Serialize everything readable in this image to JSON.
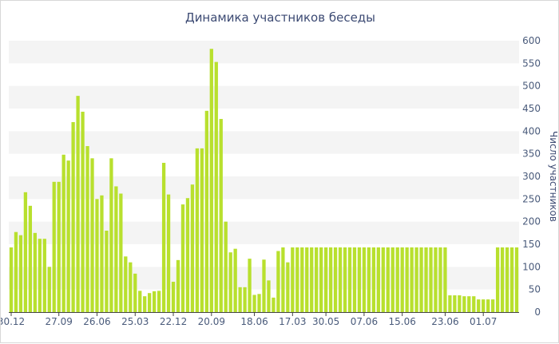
{
  "chart_data": {
    "type": "bar",
    "title": "Динамика участников беседы",
    "xlabel": "",
    "ylabel": "Число участников",
    "ylim": [
      0,
      600
    ],
    "yticks": [
      0,
      50,
      100,
      150,
      200,
      250,
      300,
      350,
      400,
      450,
      500,
      550,
      600
    ],
    "y_axis_position": "right",
    "grid": "alternating horizontal bands",
    "bar_color": "#b8e02e",
    "xtick_labels": [
      {
        "label": "30.12",
        "index": 0
      },
      {
        "label": "27.09",
        "index": 10
      },
      {
        "label": "26.06",
        "index": 18
      },
      {
        "label": "25.03",
        "index": 26
      },
      {
        "label": "22.12",
        "index": 34
      },
      {
        "label": "20.09",
        "index": 42
      },
      {
        "label": "18.06",
        "index": 51
      },
      {
        "label": "17.03",
        "index": 59
      },
      {
        "label": "30.05",
        "index": 66
      },
      {
        "label": "07.06",
        "index": 74
      },
      {
        "label": "15.06",
        "index": 82
      },
      {
        "label": "23.06",
        "index": 91
      },
      {
        "label": "01.07",
        "index": 99
      }
    ],
    "values": [
      143,
      177,
      170,
      265,
      235,
      175,
      162,
      162,
      100,
      288,
      288,
      348,
      335,
      420,
      478,
      443,
      367,
      340,
      250,
      258,
      180,
      340,
      278,
      262,
      123,
      110,
      85,
      47,
      35,
      42,
      46,
      47,
      330,
      260,
      67,
      115,
      238,
      252,
      282,
      362,
      362,
      445,
      582,
      553,
      427,
      200,
      132,
      140,
      55,
      55,
      118,
      38,
      40,
      116,
      70,
      32,
      135,
      143,
      110,
      143,
      143,
      143,
      143,
      143,
      143,
      143,
      143,
      143,
      143,
      143,
      143,
      143,
      143,
      143,
      143,
      143,
      143,
      143,
      143,
      143,
      143,
      143,
      143,
      143,
      143,
      143,
      143,
      143,
      143,
      143,
      143,
      143,
      37,
      37,
      37,
      35,
      35,
      35,
      28,
      28,
      28,
      28,
      143,
      143,
      143,
      143,
      143
    ]
  }
}
